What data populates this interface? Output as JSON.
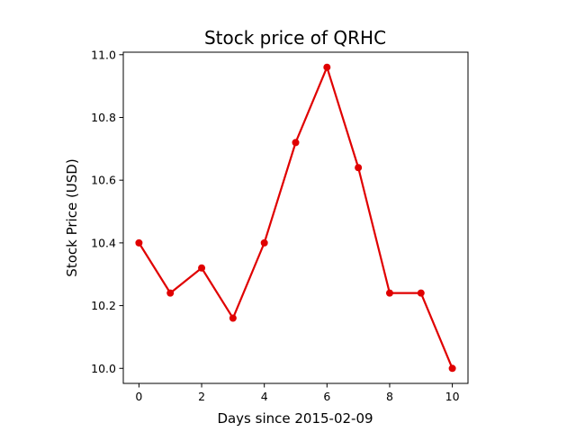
{
  "chart_data": {
    "type": "line",
    "title": "Stock price of QRHC",
    "xlabel": "Days since 2015-02-09",
    "ylabel": "Stock Price (USD)",
    "x": [
      0,
      1,
      2,
      3,
      4,
      5,
      6,
      7,
      8,
      9,
      10
    ],
    "series": [
      {
        "values": [
          10.4,
          10.24,
          10.32,
          10.16,
          10.4,
          10.72,
          10.96,
          10.64,
          10.24,
          10.24,
          10.0
        ],
        "color": "#e00000",
        "marker": "circle"
      }
    ],
    "xlim": [
      -0.5,
      10.5
    ],
    "ylim": [
      9.952,
      11.008
    ],
    "xticks": [
      0,
      2,
      4,
      6,
      8,
      10
    ],
    "yticks": [
      10.0,
      10.2,
      10.4,
      10.6,
      10.8,
      11.0
    ],
    "xtick_labels": [
      "0",
      "2",
      "4",
      "6",
      "8",
      "10"
    ],
    "ytick_labels": [
      "10.0",
      "10.2",
      "10.4",
      "10.6",
      "10.8",
      "11.0"
    ],
    "grid": false,
    "legend": "none"
  }
}
